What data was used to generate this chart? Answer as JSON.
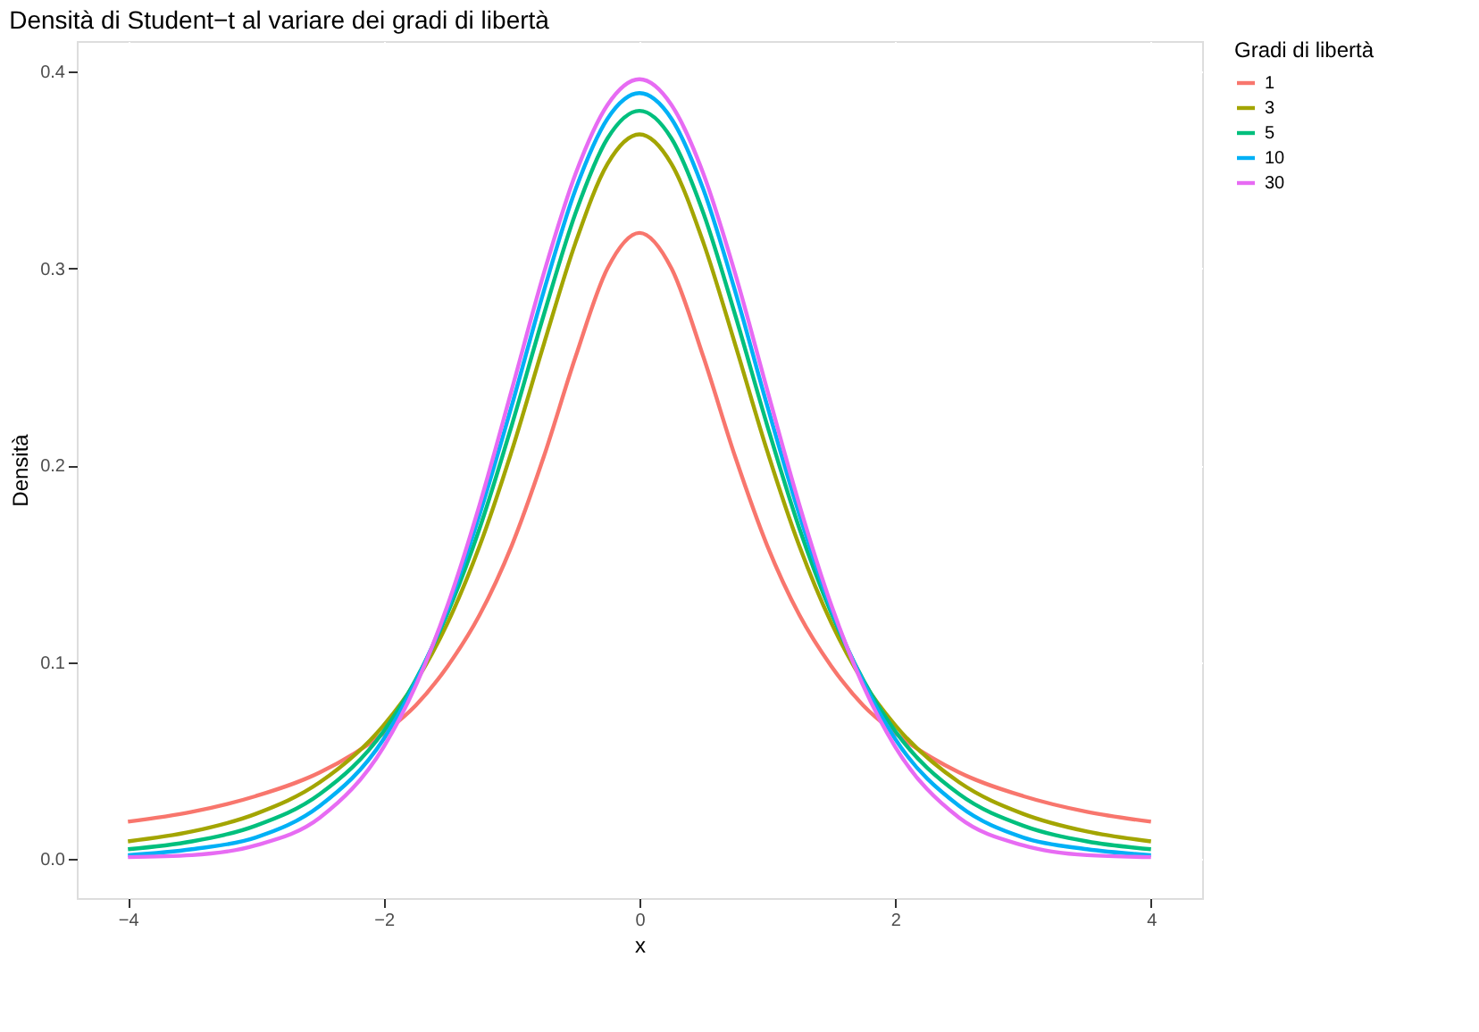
{
  "chart_data": {
    "type": "line",
    "title": "Densità di Student−t al variare dei gradi di libertà",
    "xlabel": "x",
    "ylabel": "Densità",
    "legend_title": "Gradi di libertà",
    "legend": "right",
    "grid": true,
    "line_style": "solid",
    "marker": "none",
    "x": [
      -4,
      -3.5,
      -3,
      -2.5,
      -2,
      -1.75,
      -1.5,
      -1.25,
      -1,
      -0.75,
      -0.5,
      -0.25,
      0,
      0.25,
      0.5,
      0.75,
      1,
      1.25,
      1.5,
      1.75,
      2,
      2.5,
      3,
      3.5,
      4
    ],
    "xlim": [
      -4.4,
      4.4
    ],
    "xticks": [
      {
        "value": -4,
        "label": "−4"
      },
      {
        "value": -2,
        "label": "−2"
      },
      0,
      2,
      4
    ],
    "ylim": [
      -0.0198,
      0.4154
    ],
    "yticks": [
      {
        "value": 0,
        "label": "0.0"
      },
      0.1,
      0.2,
      0.3,
      0.4
    ],
    "series": [
      {
        "name": "1",
        "color": "#F8766D",
        "values": [
          0.019,
          0.024,
          0.032,
          0.044,
          0.064,
          0.078,
          0.098,
          0.124,
          0.159,
          0.204,
          0.255,
          0.3,
          0.318,
          0.3,
          0.255,
          0.204,
          0.159,
          0.124,
          0.098,
          0.078,
          0.064,
          0.044,
          0.032,
          0.024,
          0.019
        ]
      },
      {
        "name": "3",
        "color": "#A3A500",
        "values": [
          0.009,
          0.014,
          0.023,
          0.039,
          0.068,
          0.09,
          0.12,
          0.159,
          0.207,
          0.261,
          0.313,
          0.353,
          0.368,
          0.353,
          0.313,
          0.261,
          0.207,
          0.159,
          0.12,
          0.09,
          0.068,
          0.039,
          0.023,
          0.014,
          0.009
        ]
      },
      {
        "name": "5",
        "color": "#00BF7D",
        "values": [
          0.005,
          0.009,
          0.017,
          0.033,
          0.065,
          0.091,
          0.125,
          0.168,
          0.22,
          0.276,
          0.328,
          0.366,
          0.38,
          0.366,
          0.328,
          0.276,
          0.22,
          0.168,
          0.125,
          0.091,
          0.065,
          0.033,
          0.017,
          0.009,
          0.005
        ]
      },
      {
        "name": "10",
        "color": "#00B0F6",
        "values": [
          0.002,
          0.005,
          0.011,
          0.027,
          0.061,
          0.09,
          0.127,
          0.175,
          0.23,
          0.288,
          0.34,
          0.376,
          0.389,
          0.376,
          0.34,
          0.288,
          0.23,
          0.175,
          0.127,
          0.09,
          0.061,
          0.027,
          0.011,
          0.005,
          0.002
        ]
      },
      {
        "name": "30",
        "color": "#E76BF3",
        "values": [
          0.001,
          0.002,
          0.007,
          0.021,
          0.057,
          0.088,
          0.129,
          0.18,
          0.238,
          0.297,
          0.348,
          0.383,
          0.396,
          0.383,
          0.348,
          0.297,
          0.238,
          0.18,
          0.129,
          0.088,
          0.057,
          0.021,
          0.007,
          0.002,
          0.001
        ]
      }
    ]
  }
}
